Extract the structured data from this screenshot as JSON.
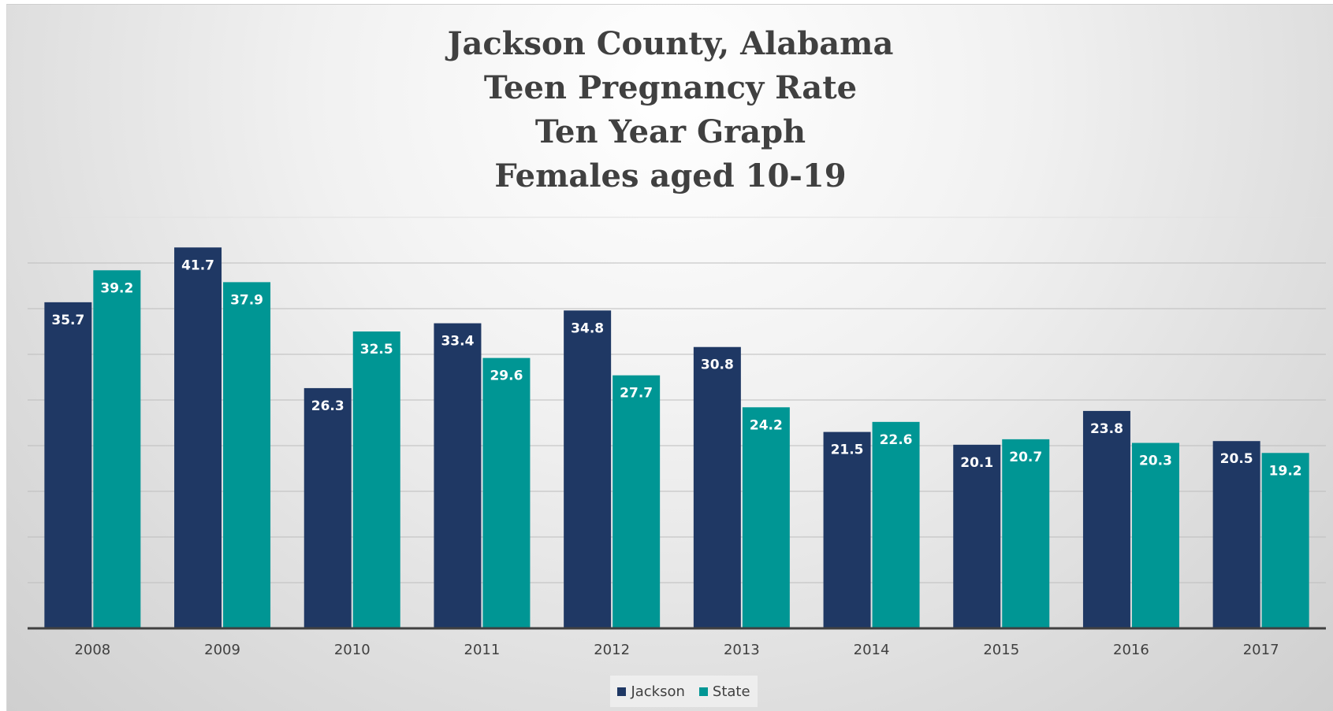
{
  "chart_data": {
    "type": "bar",
    "title_lines": [
      "Jackson County, Alabama",
      "Teen Pregnancy Rate",
      "Ten Year Graph",
      "Females aged 10-19"
    ],
    "categories": [
      "2008",
      "2009",
      "2010",
      "2011",
      "2012",
      "2013",
      "2014",
      "2015",
      "2016",
      "2017"
    ],
    "series": [
      {
        "name": "Jackson",
        "color": "#1f3864",
        "values": [
          35.7,
          41.7,
          26.3,
          33.4,
          34.8,
          30.8,
          21.5,
          20.1,
          23.8,
          20.5
        ],
        "labels": [
          "35.7",
          "41.7",
          "26.3",
          "33.4",
          "34.8",
          "30.8",
          "21.5",
          "20.1",
          "23.8",
          "20.5"
        ]
      },
      {
        "name": "State",
        "color": "#009694",
        "values": [
          39.2,
          37.9,
          32.5,
          29.6,
          27.7,
          24.2,
          22.6,
          20.7,
          20.3,
          19.2
        ],
        "labels": [
          "39.2",
          "37.9",
          "32.5",
          "29.6",
          "27.7",
          "24.2",
          "22.6",
          "20.7",
          "20.3",
          "19.2"
        ]
      }
    ],
    "ylim": [
      0,
      45
    ],
    "gridlines": true,
    "legend_position": "bottom",
    "data_labels": "inside-end"
  }
}
